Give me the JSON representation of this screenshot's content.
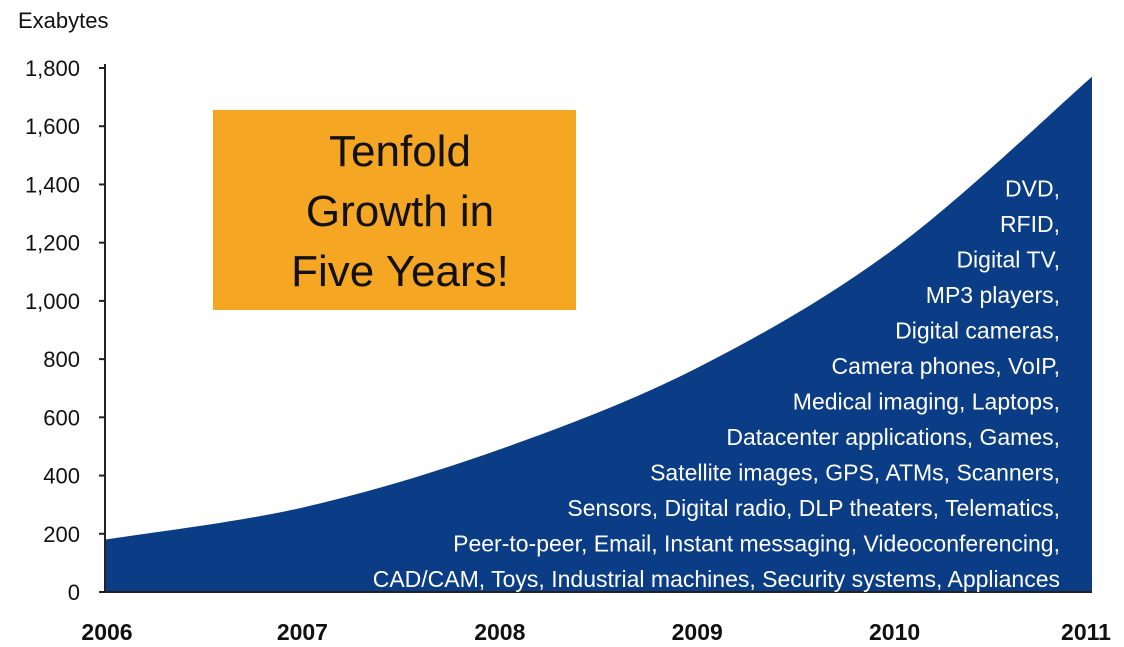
{
  "chart_data": {
    "type": "area",
    "ylabel": "Exabytes",
    "x": [
      "2006",
      "2007",
      "2008",
      "2009",
      "2010",
      "2011"
    ],
    "values": [
      180,
      290,
      490,
      770,
      1180,
      1770
    ],
    "ylim": [
      0,
      1800
    ],
    "yticks": [
      "0",
      "200",
      "400",
      "600",
      "800",
      "1,000",
      "1,200",
      "1,400",
      "1,600",
      "1,800"
    ],
    "area_color": "#0b3d86",
    "grid": false,
    "callout": {
      "lines": [
        "Tenfold",
        "Growth in",
        "Five Years!"
      ],
      "color": "#f5a623"
    },
    "annotations": [
      "DVD,",
      "RFID,",
      "Digital TV,",
      "MP3 players,",
      "Digital cameras,",
      "Camera phones, VoIP,",
      "Medical imaging, Laptops,",
      "Datacenter applications, Games,",
      "Satellite images, GPS, ATMs, Scanners,",
      "Sensors, Digital radio, DLP theaters, Telematics,",
      "Peer-to-peer, Email, Instant messaging, Videoconferencing,",
      "CAD/CAM, Toys, Industrial machines, Security systems, Appliances"
    ]
  }
}
